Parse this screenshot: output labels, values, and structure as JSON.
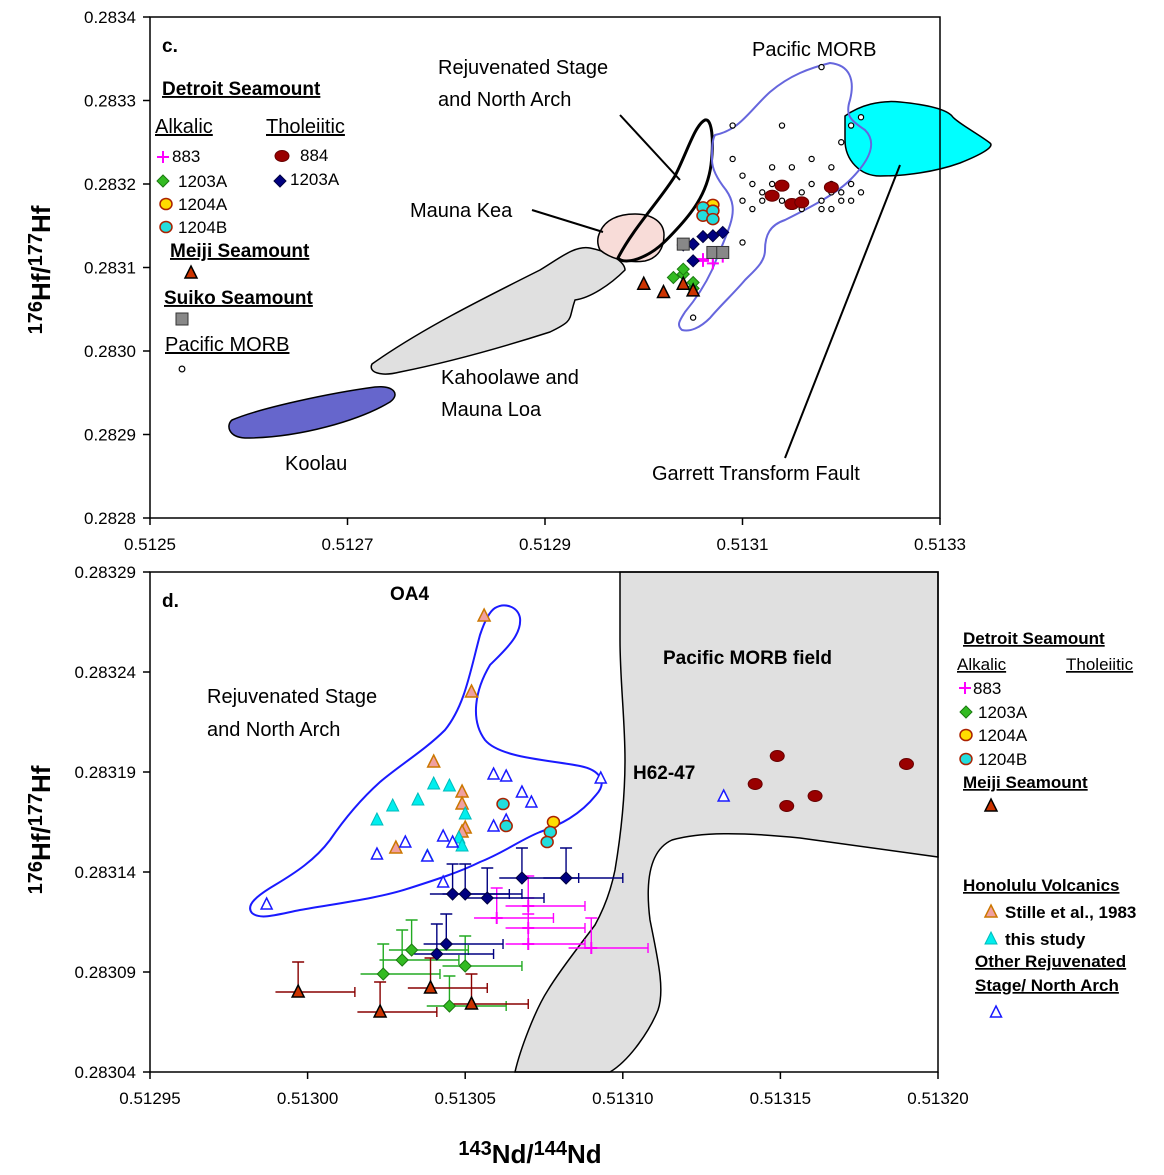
{
  "chart_data": [
    {
      "type": "scatter",
      "panel_label": "c.",
      "xlabel": "",
      "ylabel": "176Hf/177Hf",
      "xlim": [
        0.5125,
        0.5133
      ],
      "ylim": [
        0.2828,
        0.2834
      ],
      "x_ticks": [
        "0.5125",
        "0.5127",
        "0.5129",
        "0.5131",
        "0.5133"
      ],
      "y_ticks": [
        "0.2828",
        "0.2829",
        "0.2830",
        "0.2831",
        "0.2832",
        "0.2833",
        "0.2834"
      ],
      "field_labels": {
        "rejuvenated": "Rejuvenated Stage\nand North Arch",
        "pacific_morb": "Pacific MORB",
        "mauna_kea": "Mauna Kea",
        "kahoolawe": "Kahoolawe and\nMauna Loa",
        "koolau": "Koolau",
        "garrett": "Garrett Transform Fault"
      },
      "legend": {
        "heading": "Detroit Seamount",
        "alkalic": "Alkalic",
        "tholeiitic": "Tholeiitic",
        "items": [
          "883",
          "1203A",
          "1204A",
          "1204B",
          "884",
          "1203A"
        ],
        "meiji": "Meiji Seamount",
        "suiko": "Suiko Seamount",
        "morb": "Pacific MORB"
      },
      "series": [
        {
          "name": "883",
          "points": [
            [
              0.51306,
              0.28311
            ],
            [
              0.51307,
              0.283112
            ],
            [
              0.51308,
              0.283113
            ],
            [
              0.51306,
              0.283108
            ],
            [
              0.51307,
              0.283105
            ]
          ]
        },
        {
          "name": "1203A",
          "points": [
            [
              0.51303,
              0.283088
            ],
            [
              0.51304,
              0.283092
            ],
            [
              0.51304,
              0.283098
            ],
            [
              0.51305,
              0.283075
            ],
            [
              0.51305,
              0.283082
            ]
          ]
        },
        {
          "name": "1204A",
          "points": [
            [
              0.51307,
              0.283175
            ],
            [
              0.51307,
              0.283168
            ]
          ]
        },
        {
          "name": "1204B",
          "points": [
            [
              0.51306,
              0.283172
            ],
            [
              0.51306,
              0.283162
            ],
            [
              0.51307,
              0.283168
            ],
            [
              0.51307,
              0.283158
            ]
          ]
        },
        {
          "name": "884",
          "points": [
            [
              0.51314,
              0.283198
            ],
            [
              0.51315,
              0.283176
            ],
            [
              0.51316,
              0.283178
            ],
            [
              0.51313,
              0.283186
            ],
            [
              0.51319,
              0.283196
            ]
          ]
        },
        {
          "name": "1203A",
          "points": [
            [
              0.51304,
              0.283127
            ],
            [
              0.51305,
              0.283128
            ],
            [
              0.51306,
              0.283137
            ],
            [
              0.51307,
              0.283138
            ],
            [
              0.51308,
              0.283142
            ],
            [
              0.51305,
              0.283108
            ]
          ]
        },
        {
          "name": "Meiji Seamount",
          "points": [
            [
              0.513,
              0.28308
            ],
            [
              0.51302,
              0.28307
            ],
            [
              0.51304,
              0.28308
            ],
            [
              0.51305,
              0.283072
            ]
          ]
        },
        {
          "name": "Suiko Seamount",
          "points": [
            [
              0.51304,
              0.283128
            ],
            [
              0.51307,
              0.283118
            ],
            [
              0.51308,
              0.283118
            ]
          ]
        }
      ]
    },
    {
      "type": "scatter",
      "panel_label": "d.",
      "xlabel": "143Nd/144Nd",
      "ylabel": "176Hf/177Hf",
      "xlim": [
        0.51295,
        0.5132
      ],
      "ylim": [
        0.28304,
        0.28329
      ],
      "x_ticks": [
        "0.51295",
        "0.51300",
        "0.51305",
        "0.51310",
        "0.51315",
        "0.51320"
      ],
      "y_ticks": [
        "0.28304",
        "0.28309",
        "0.28314",
        "0.28319",
        "0.28324",
        "0.28329"
      ],
      "annotations": {
        "oa4": "OA4",
        "h62": "H62-47",
        "morb_field": "Pacific MORB field",
        "rejuvenated": "Rejuvenated Stage\nand North Arch"
      },
      "legend": {
        "heading": "Detroit Seamount",
        "alkalic": "Alkalic",
        "tholeiitic": "Tholeiitic",
        "items": [
          "883",
          "1203A",
          "1204A",
          "1204B"
        ],
        "meiji": "Meiji Seamount",
        "honolulu": "Honolulu Volcanics",
        "stille": "Stille et al., 1983",
        "this_study": "this study",
        "other_heading": "Other Rejuvenated\nStage/ North Arch"
      },
      "series": [
        {
          "name": "Stille et al., 1983",
          "points": [
            [
              0.513056,
              0.283268
            ],
            [
              0.513052,
              0.28323
            ],
            [
              0.51304,
              0.283195
            ],
            [
              0.513049,
              0.28318
            ],
            [
              0.513049,
              0.283174
            ],
            [
              0.51305,
              0.283162
            ],
            [
              0.513028,
              0.283152
            ],
            [
              0.513049,
              0.28316
            ]
          ]
        },
        {
          "name": "this study",
          "points": [
            [
              0.513022,
              0.283166
            ],
            [
              0.513027,
              0.283173
            ],
            [
              0.513035,
              0.283176
            ],
            [
              0.51304,
              0.283184
            ],
            [
              0.513045,
              0.283183
            ],
            [
              0.51305,
              0.283169
            ],
            [
              0.513038,
              0.283148
            ],
            [
              0.513048,
              0.283157
            ],
            [
              0.513049,
              0.283153
            ]
          ]
        },
        {
          "name": "Other Rejuvenated Stage/ North Arch",
          "points": [
            [
              0.512987,
              0.283124
            ],
            [
              0.513022,
              0.283149
            ],
            [
              0.513031,
              0.283155
            ],
            [
              0.513038,
              0.283148
            ],
            [
              0.513043,
              0.283135
            ],
            [
              0.513043,
              0.283158
            ],
            [
              0.513046,
              0.283155
            ],
            [
              0.513059,
              0.283189
            ],
            [
              0.513063,
              0.283188
            ],
            [
              0.513068,
              0.28318
            ],
            [
              0.513071,
              0.283175
            ],
            [
              0.513059,
              0.283163
            ],
            [
              0.513063,
              0.283166
            ],
            [
              0.513093,
              0.283187
            ],
            [
              0.513132,
              0.283178
            ]
          ]
        },
        {
          "name": "883",
          "points": [
            [
              0.51307,
              0.283123
            ],
            [
              0.51306,
              0.283117
            ],
            [
              0.51307,
              0.283112
            ],
            [
              0.51307,
              0.283104
            ],
            [
              0.51309,
              0.283102
            ]
          ]
        },
        {
          "name": "1203A",
          "points": [
            [
              0.513024,
              0.283089
            ],
            [
              0.51303,
              0.283096
            ],
            [
              0.513033,
              0.283101
            ],
            [
              0.51305,
              0.283093
            ],
            [
              0.513045,
              0.283073
            ]
          ]
        },
        {
          "name": "1204A",
          "points": [
            [
              0.513078,
              0.283165
            ]
          ]
        },
        {
          "name": "1204B",
          "points": [
            [
              0.513062,
              0.283174
            ],
            [
              0.513063,
              0.283163
            ],
            [
              0.513077,
              0.28316
            ],
            [
              0.513076,
              0.283155
            ]
          ]
        },
        {
          "name": "1203A tholeiitic",
          "points": [
            [
              0.513046,
              0.283129
            ],
            [
              0.51305,
              0.283129
            ],
            [
              0.513057,
              0.283127
            ],
            [
              0.513044,
              0.283104
            ],
            [
              0.513041,
              0.283099
            ],
            [
              0.513068,
              0.283137
            ],
            [
              0.513082,
              0.283137
            ]
          ]
        },
        {
          "name": "884",
          "points": [
            [
              0.513142,
              0.283184
            ],
            [
              0.513149,
              0.283198
            ],
            [
              0.513152,
              0.283173
            ],
            [
              0.513161,
              0.283178
            ],
            [
              0.51319,
              0.283194
            ]
          ]
        },
        {
          "name": "Meiji Seamount",
          "points": [
            [
              0.512997,
              0.28308
            ],
            [
              0.513023,
              0.28307
            ],
            [
              0.513039,
              0.283082
            ],
            [
              0.513052,
              0.283074
            ]
          ]
        }
      ]
    }
  ]
}
